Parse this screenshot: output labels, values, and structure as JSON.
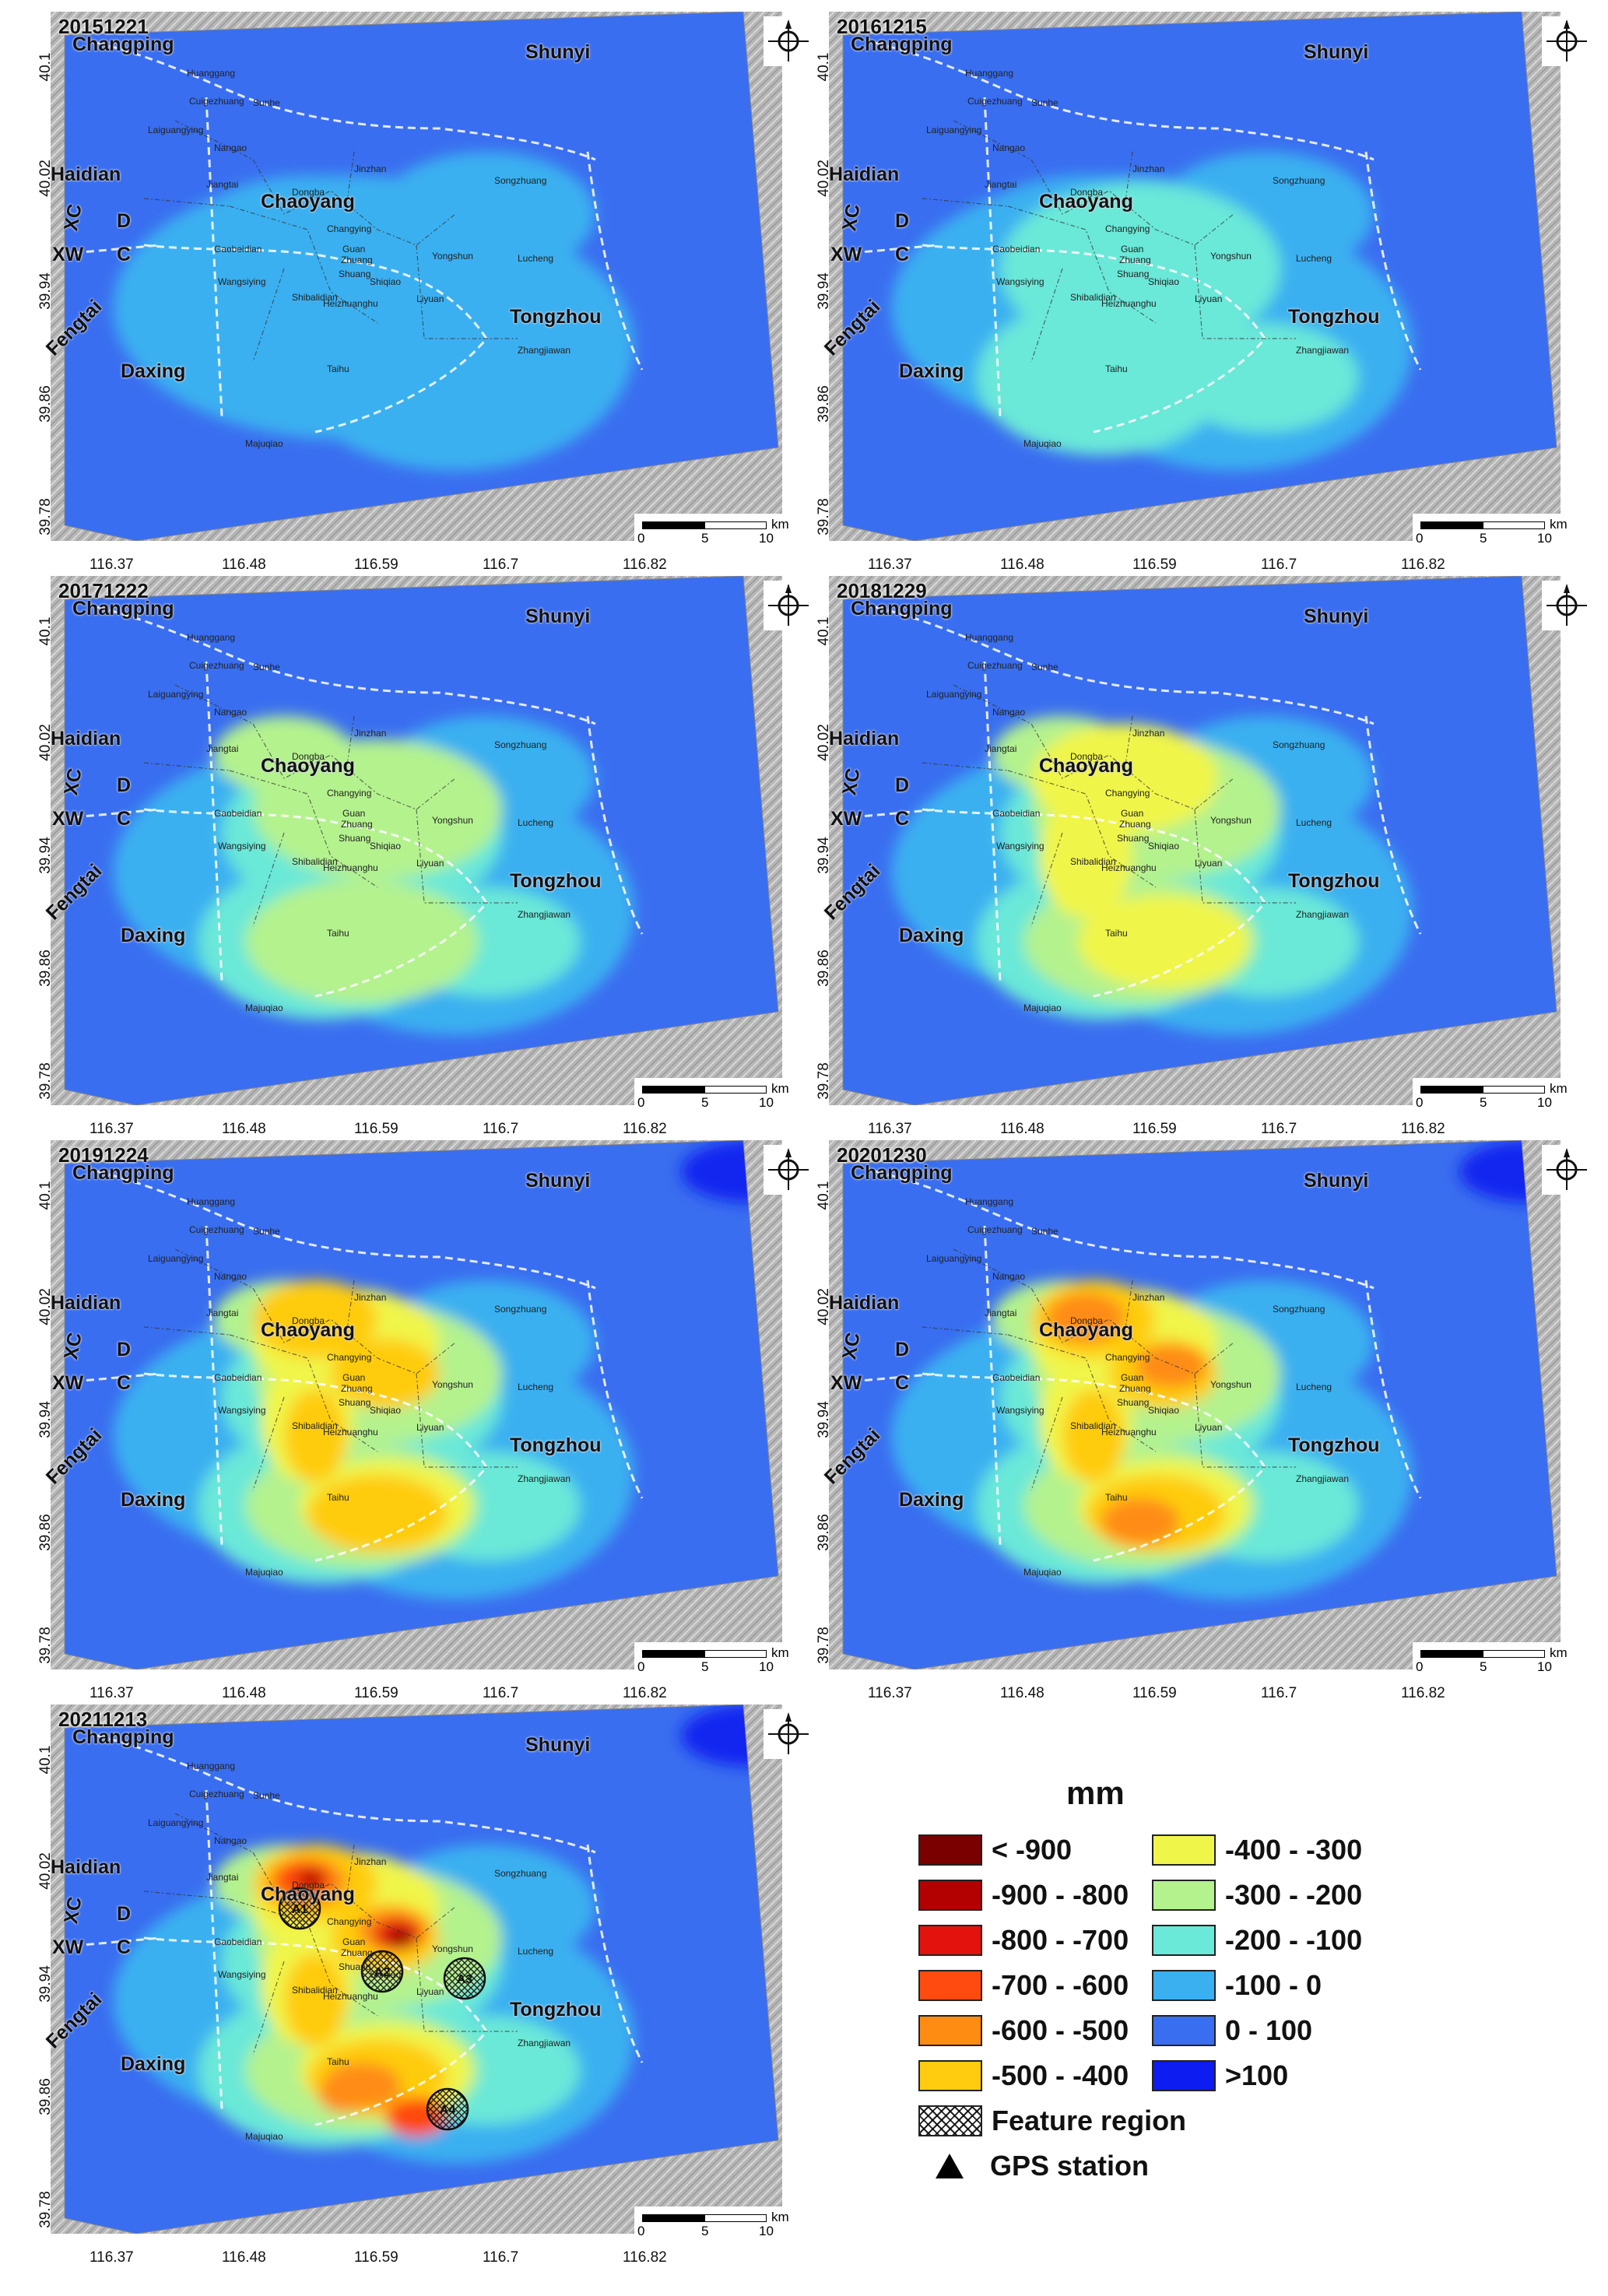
{
  "panels": [
    {
      "date": "20151221",
      "level": 0
    },
    {
      "date": "20161215",
      "level": 1
    },
    {
      "date": "20171222",
      "level": 2
    },
    {
      "date": "20181229",
      "level": 3
    },
    {
      "date": "20191224",
      "level": 4
    },
    {
      "date": "20201230",
      "level": 5
    },
    {
      "date": "20211213",
      "level": 6,
      "feature_regions": [
        "A1",
        "A2",
        "A3",
        "A4"
      ]
    }
  ],
  "districts": {
    "changping": "Changping",
    "shunyi": "Shunyi",
    "haidian": "Haidian",
    "chaoyang": "Chaoyang",
    "tongzhou": "Tongzhou",
    "daxing": "Daxing",
    "fengtai": "Fengtai",
    "xc": "XC",
    "xw": "XW",
    "d": "D",
    "c": "C"
  },
  "towns": {
    "huanggang": "Huanggang",
    "cuigezhuang": "Cuigezhuang",
    "sunhe": "Sunhe",
    "laiguangying": "Laiguangying",
    "nangao": "Nangao",
    "jiangtai": "Jiangtai",
    "dongba": "Dongba",
    "jinzhan": "Jinzhan",
    "songzhuang": "Songzhuang",
    "changying": "Changying",
    "guan": "Guan",
    "zhuang": "Zhuang",
    "gaobeidian": "Gaobeidian",
    "yongshun": "Yongshun",
    "lucheng": "Lucheng",
    "wangsiying": "Wangsiying",
    "shuang": "Shuang",
    "liyuan": "Liyuan",
    "heizhuanghu": "Heizhuanghu",
    "taihu": "Taihu",
    "zhangjiawan": "Zhangjiawan",
    "majuqiao": "Majuqiao",
    "shibalidian": "Shibalidian",
    "shiqiao": "Shiqiao"
  },
  "axes": {
    "y_ticks": [
      "40.1",
      "40.02",
      "39.94",
      "39.86",
      "39.78"
    ],
    "x_ticks": [
      "116.37",
      "116.48",
      "116.59",
      "116.7",
      "116.82"
    ]
  },
  "scale": {
    "unit": "km",
    "ticks": [
      "0",
      "5",
      "10"
    ]
  },
  "legend": {
    "title": "mm",
    "items": [
      {
        "label": "< -900",
        "color": "#7a0000"
      },
      {
        "label": "-900 - -800",
        "color": "#b30000"
      },
      {
        "label": "-800 - -700",
        "color": "#e3120c"
      },
      {
        "label": "-700 - -600",
        "color": "#ff4a10"
      },
      {
        "label": "-600 - -500",
        "color": "#ff8c12"
      },
      {
        "label": "-500 - -400",
        "color": "#ffcc10"
      },
      {
        "label": "-400 - -300",
        "color": "#f0f54a"
      },
      {
        "label": "-300 - -200",
        "color": "#b4f28e"
      },
      {
        "label": "-200 - -100",
        "color": "#6ae8d8"
      },
      {
        "label": "-100 - 0",
        "color": "#3ab0f0"
      },
      {
        "label": "0 - 100",
        "color": "#3a6ef0"
      },
      {
        "label": ">100",
        "color": "#0d1cf0"
      }
    ],
    "feature_label": "Feature region",
    "gps_label": "GPS station"
  }
}
